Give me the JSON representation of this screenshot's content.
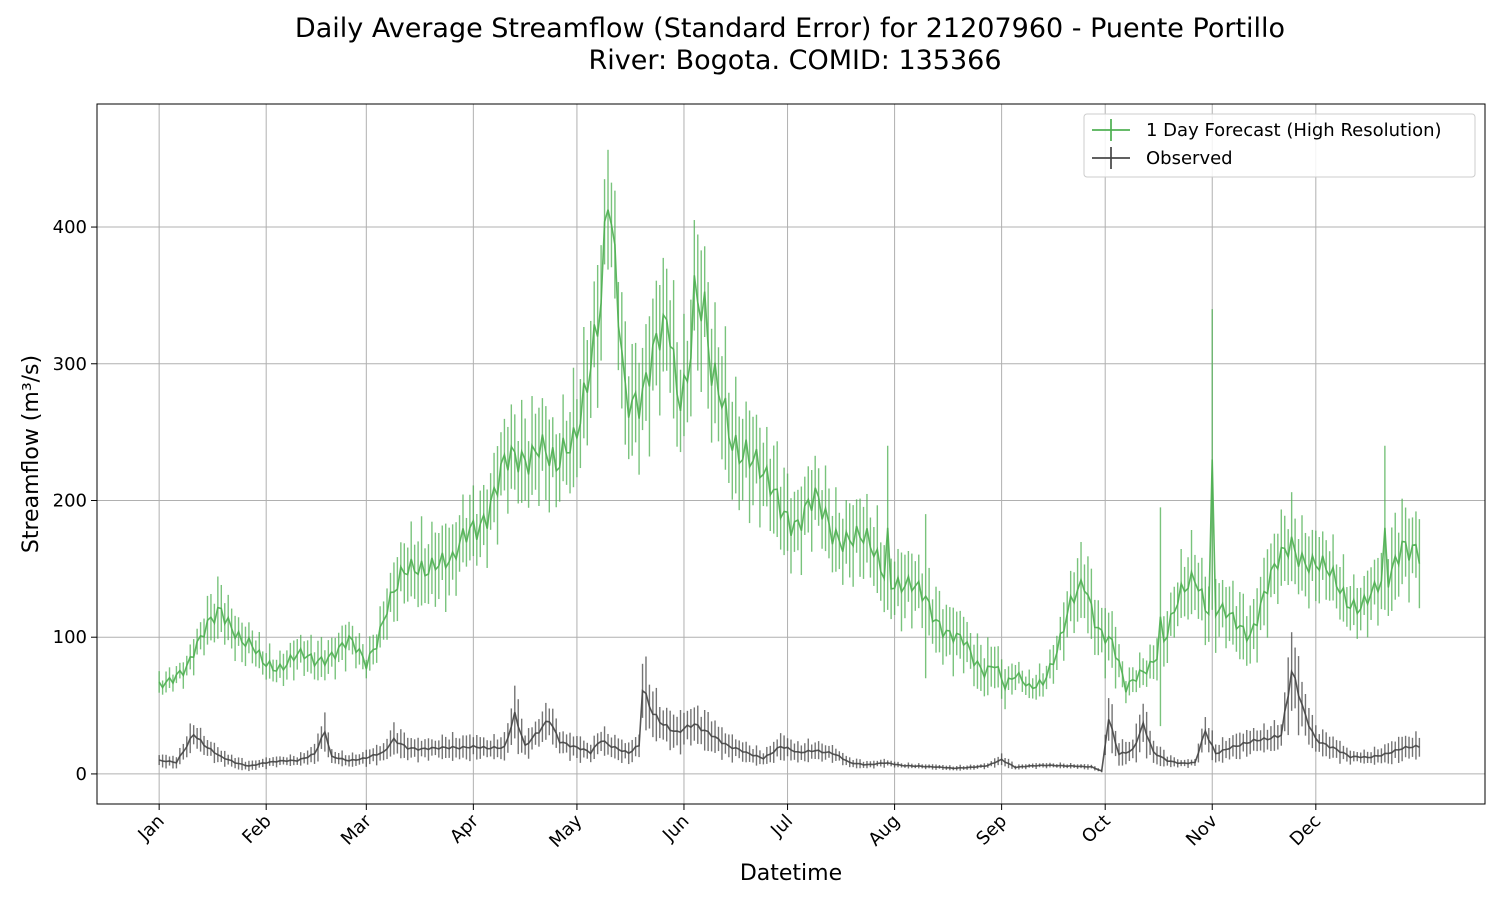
{
  "chart_data": {
    "type": "line",
    "title_line1": "Daily Average Streamflow (Standard Error) for 21207960 - Puente Portillo",
    "title_line2": "River: Bogota. COMID: 135366",
    "xlabel": "Datetime",
    "ylabel": "Streamflow (m³/s)",
    "x_tick_labels": [
      "Jan",
      "Feb",
      "Mar",
      "Apr",
      "May",
      "Jun",
      "Jul",
      "Aug",
      "Sep",
      "Oct",
      "Nov",
      "Dec"
    ],
    "x_tick_days": [
      0,
      31,
      60,
      91,
      121,
      152,
      182,
      213,
      244,
      274,
      305,
      335
    ],
    "xlim": [
      -18,
      384
    ],
    "y_ticks": [
      0,
      100,
      200,
      300,
      400
    ],
    "ylim": [
      -22,
      490
    ],
    "grid": true,
    "legend_position": "top-right",
    "series": [
      {
        "name": "1 Day Forecast (High Resolution)",
        "color": "#4caf50",
        "anchors": [
          [
            0,
            64,
            8
          ],
          [
            5,
            75,
            8
          ],
          [
            8,
            78,
            10
          ],
          [
            12,
            95,
            15
          ],
          [
            15,
            112,
            20
          ],
          [
            18,
            125,
            22
          ],
          [
            21,
            110,
            18
          ],
          [
            24,
            95,
            15
          ],
          [
            27,
            90,
            15
          ],
          [
            30,
            82,
            12
          ],
          [
            35,
            80,
            12
          ],
          [
            40,
            85,
            14
          ],
          [
            45,
            82,
            15
          ],
          [
            50,
            90,
            15
          ],
          [
            55,
            95,
            16
          ],
          [
            60,
            80,
            10
          ],
          [
            63,
            100,
            15
          ],
          [
            66,
            125,
            20
          ],
          [
            70,
            140,
            25
          ],
          [
            75,
            150,
            30
          ],
          [
            80,
            160,
            30
          ],
          [
            85,
            150,
            30
          ],
          [
            90,
            180,
            25
          ],
          [
            95,
            195,
            30
          ],
          [
            100,
            220,
            35
          ],
          [
            105,
            230,
            35
          ],
          [
            110,
            250,
            40
          ],
          [
            115,
            215,
            30
          ],
          [
            120,
            245,
            40
          ],
          [
            124,
            300,
            45
          ],
          [
            128,
            340,
            50
          ],
          [
            130,
            410,
            45
          ],
          [
            132,
            360,
            45
          ],
          [
            135,
            280,
            45
          ],
          [
            140,
            285,
            45
          ],
          [
            145,
            310,
            50
          ],
          [
            148,
            320,
            50
          ],
          [
            150,
            280,
            45
          ],
          [
            153,
            300,
            45
          ],
          [
            155,
            360,
            55
          ],
          [
            158,
            330,
            50
          ],
          [
            160,
            280,
            50
          ],
          [
            163,
            270,
            50
          ],
          [
            166,
            250,
            45
          ],
          [
            170,
            240,
            40
          ],
          [
            175,
            210,
            35
          ],
          [
            180,
            200,
            35
          ],
          [
            185,
            185,
            30
          ],
          [
            190,
            195,
            30
          ],
          [
            195,
            180,
            30
          ],
          [
            200,
            175,
            30
          ],
          [
            205,
            165,
            30
          ],
          [
            210,
            150,
            30
          ],
          [
            215,
            140,
            28
          ],
          [
            220,
            130,
            25
          ],
          [
            225,
            115,
            25
          ],
          [
            229,
            105,
            25
          ],
          [
            233,
            95,
            20
          ],
          [
            236,
            80,
            20
          ],
          [
            239,
            75,
            20
          ],
          [
            242,
            85,
            20
          ],
          [
            245,
            65,
            15
          ],
          [
            248,
            70,
            10
          ],
          [
            252,
            62,
            10
          ],
          [
            256,
            70,
            12
          ],
          [
            260,
            90,
            15
          ],
          [
            264,
            120,
            25
          ],
          [
            268,
            140,
            30
          ],
          [
            272,
            110,
            25
          ],
          [
            276,
            95,
            25
          ],
          [
            280,
            60,
            10
          ],
          [
            284,
            75,
            12
          ],
          [
            288,
            85,
            15
          ],
          [
            292,
            100,
            20
          ],
          [
            296,
            130,
            25
          ],
          [
            300,
            150,
            30
          ],
          [
            304,
            120,
            25
          ],
          [
            308,
            115,
            25
          ],
          [
            312,
            110,
            25
          ],
          [
            316,
            105,
            25
          ],
          [
            320,
            130,
            30
          ],
          [
            324,
            150,
            30
          ],
          [
            328,
            170,
            30
          ],
          [
            332,
            160,
            30
          ],
          [
            336,
            150,
            25
          ],
          [
            340,
            140,
            25
          ],
          [
            344,
            130,
            22
          ],
          [
            348,
            125,
            20
          ],
          [
            352,
            130,
            25
          ],
          [
            356,
            140,
            30
          ],
          [
            360,
            175,
            35
          ],
          [
            364,
            165,
            30
          ],
          [
            368,
            140,
            30
          ],
          [
            372,
            120,
            30
          ],
          [
            376,
            100,
            25
          ],
          [
            380,
            85,
            15
          ],
          [
            383,
            85,
            10
          ]
        ],
        "spikes": [
          [
            211,
            180,
            60
          ],
          [
            222,
            130,
            60
          ],
          [
            290,
            115,
            80
          ],
          [
            305,
            230,
            110
          ],
          [
            355,
            180,
            60
          ]
        ]
      },
      {
        "name": "Observed",
        "color": "#444444",
        "anchors": [
          [
            0,
            10,
            5
          ],
          [
            5,
            8,
            5
          ],
          [
            8,
            20,
            10
          ],
          [
            10,
            30,
            10
          ],
          [
            14,
            20,
            8
          ],
          [
            18,
            12,
            6
          ],
          [
            22,
            8,
            5
          ],
          [
            26,
            6,
            4
          ],
          [
            30,
            8,
            4
          ],
          [
            35,
            9,
            4
          ],
          [
            40,
            10,
            4
          ],
          [
            45,
            15,
            8
          ],
          [
            48,
            30,
            15
          ],
          [
            50,
            12,
            6
          ],
          [
            55,
            10,
            5
          ],
          [
            60,
            12,
            6
          ],
          [
            65,
            15,
            8
          ],
          [
            68,
            25,
            12
          ],
          [
            72,
            20,
            10
          ],
          [
            76,
            18,
            8
          ],
          [
            80,
            18,
            8
          ],
          [
            85,
            20,
            10
          ],
          [
            90,
            20,
            10
          ],
          [
            95,
            18,
            8
          ],
          [
            100,
            20,
            10
          ],
          [
            103,
            45,
            25
          ],
          [
            106,
            20,
            10
          ],
          [
            110,
            30,
            12
          ],
          [
            113,
            40,
            15
          ],
          [
            116,
            25,
            10
          ],
          [
            120,
            20,
            10
          ],
          [
            125,
            15,
            8
          ],
          [
            128,
            25,
            10
          ],
          [
            132,
            20,
            10
          ],
          [
            136,
            15,
            8
          ],
          [
            139,
            20,
            10
          ],
          [
            140,
            60,
            30
          ],
          [
            143,
            45,
            20
          ],
          [
            146,
            38,
            15
          ],
          [
            150,
            30,
            15
          ],
          [
            155,
            35,
            15
          ],
          [
            160,
            30,
            15
          ],
          [
            165,
            20,
            10
          ],
          [
            170,
            15,
            8
          ],
          [
            175,
            12,
            6
          ],
          [
            180,
            20,
            10
          ],
          [
            185,
            15,
            8
          ],
          [
            190,
            18,
            8
          ],
          [
            195,
            15,
            6
          ],
          [
            200,
            8,
            4
          ],
          [
            205,
            7,
            3
          ],
          [
            210,
            8,
            3
          ],
          [
            215,
            6,
            2
          ],
          [
            220,
            6,
            2
          ],
          [
            225,
            5,
            2
          ],
          [
            230,
            4,
            2
          ],
          [
            235,
            5,
            2
          ],
          [
            240,
            6,
            2
          ],
          [
            244,
            10,
            5
          ],
          [
            248,
            5,
            2
          ],
          [
            252,
            6,
            2
          ],
          [
            256,
            6,
            2
          ],
          [
            260,
            6,
            2
          ],
          [
            265,
            6,
            2
          ],
          [
            270,
            5,
            2
          ],
          [
            273,
            2,
            1
          ],
          [
            275,
            40,
            20
          ],
          [
            278,
            15,
            10
          ],
          [
            282,
            18,
            10
          ],
          [
            285,
            35,
            20
          ],
          [
            288,
            15,
            10
          ],
          [
            292,
            10,
            5
          ],
          [
            296,
            8,
            3
          ],
          [
            300,
            8,
            3
          ],
          [
            303,
            30,
            15
          ],
          [
            306,
            15,
            8
          ],
          [
            310,
            20,
            10
          ],
          [
            315,
            22,
            10
          ],
          [
            320,
            25,
            10
          ],
          [
            325,
            30,
            12
          ],
          [
            328,
            75,
            35
          ],
          [
            332,
            40,
            20
          ],
          [
            335,
            25,
            10
          ],
          [
            340,
            20,
            10
          ],
          [
            345,
            12,
            5
          ],
          [
            350,
            12,
            5
          ],
          [
            355,
            15,
            8
          ],
          [
            360,
            18,
            10
          ],
          [
            365,
            20,
            10
          ],
          [
            370,
            18,
            10
          ],
          [
            374,
            10,
            5
          ],
          [
            378,
            8,
            4
          ],
          [
            383,
            6,
            3
          ]
        ],
        "spikes": []
      }
    ]
  }
}
